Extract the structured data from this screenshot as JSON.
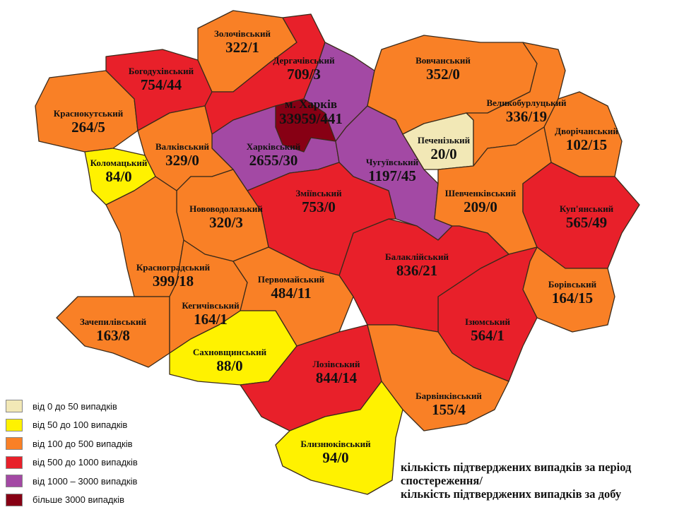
{
  "colors": {
    "0-50": "#F2E8B6",
    "50-100": "#FFF200",
    "100-500": "#F98026",
    "500-1000": "#E8202A",
    "1000-3000": "#A349A4",
    "3000+": "#870014"
  },
  "districts": [
    {
      "id": "krasnokutskyi",
      "name": "Краснокутський",
      "value": "264/5",
      "cat": "100-500"
    },
    {
      "id": "bohodukhivskyi",
      "name": "Богодухівський",
      "value": "754/44",
      "cat": "500-1000"
    },
    {
      "id": "zolochivskyi",
      "name": "Золочівський",
      "value": "322/1",
      "cat": "100-500"
    },
    {
      "id": "derhachivskyi",
      "name": "Дергачівський",
      "value": "709/3",
      "cat": "500-1000"
    },
    {
      "id": "kharkivskyi",
      "name": "Харківський",
      "value": "2655/30",
      "cat": "1000-3000"
    },
    {
      "id": "chuhuivskyi",
      "name": "Чугуївський",
      "value": "1197/45",
      "cat": "1000-3000"
    },
    {
      "id": "kharkiv-city",
      "name": "м. Харків",
      "value": "33959/441",
      "cat": "3000+"
    },
    {
      "id": "vovchanskyi",
      "name": "Вовчанський",
      "value": "352/0",
      "cat": "100-500"
    },
    {
      "id": "pechenizkyi",
      "name": "Печенізький",
      "value": "20/0",
      "cat": "0-50"
    },
    {
      "id": "velykoburlutskyi",
      "name": "Великобурлуцький",
      "value": "336/19",
      "cat": "100-500"
    },
    {
      "id": "dvorichanskyi",
      "name": "Дворічанський",
      "value": "102/15",
      "cat": "100-500"
    },
    {
      "id": "shevchenkivskyi",
      "name": "Шевченківський",
      "value": "209/0",
      "cat": "100-500"
    },
    {
      "id": "kupianskyi",
      "name": "Куп'янський",
      "value": "565/49",
      "cat": "500-1000"
    },
    {
      "id": "borivskyi",
      "name": "Борівський",
      "value": "164/15",
      "cat": "100-500"
    },
    {
      "id": "iziumskyi",
      "name": "Ізюмський",
      "value": "564/1",
      "cat": "500-1000"
    },
    {
      "id": "balakliiskyi",
      "name": "Балаклійський",
      "value": "836/21",
      "cat": "500-1000"
    },
    {
      "id": "zmiivskyi",
      "name": "Зміївський",
      "value": "753/0",
      "cat": "500-1000"
    },
    {
      "id": "valkivskyi",
      "name": "Валківський",
      "value": "329/0",
      "cat": "100-500"
    },
    {
      "id": "kolomatskyi",
      "name": "Коломацький",
      "value": "84/0",
      "cat": "50-100"
    },
    {
      "id": "novovodolazkyi",
      "name": "Нововодолазький",
      "value": "320/3",
      "cat": "100-500"
    },
    {
      "id": "krasnohradskyi",
      "name": "Красноградський",
      "value": "399/18",
      "cat": "100-500"
    },
    {
      "id": "zachepylivskyi",
      "name": "Зачепилівський",
      "value": "163/8",
      "cat": "100-500"
    },
    {
      "id": "kehychivskyi",
      "name": "Кегичівський",
      "value": "164/1",
      "cat": "100-500"
    },
    {
      "id": "pervomaiskyi",
      "name": "Первомайський",
      "value": "484/11",
      "cat": "100-500"
    },
    {
      "id": "sakhnovshchynskyi",
      "name": "Сахновщинський",
      "value": "88/0",
      "cat": "50-100"
    },
    {
      "id": "lozivskyi",
      "name": "Лозівський",
      "value": "844/14",
      "cat": "500-1000"
    },
    {
      "id": "barvinkivskyi",
      "name": "Барвінківський",
      "value": "155/4",
      "cat": "100-500"
    },
    {
      "id": "blyzniukivskyi",
      "name": "Близнюківський",
      "value": "94/0",
      "cat": "50-100"
    }
  ],
  "legend": [
    {
      "label": "від 0 до 50  випадків",
      "cat": "0-50"
    },
    {
      "label": "від 50 до 100 випадків",
      "cat": "50-100"
    },
    {
      "label": "від 100 до 500  випадків",
      "cat": "100-500"
    },
    {
      "label": "від 500 до 1000  випадків",
      "cat": "500-1000"
    },
    {
      "label": "від 1000 – 3000  випадків",
      "cat": "1000-3000"
    },
    {
      "label": "більше 3000  випадків",
      "cat": "3000+"
    }
  ],
  "note": {
    "line1": "кількість підтверджених випадків за період спостереження/",
    "line2": "кількість підтверджених випадків за добу"
  }
}
